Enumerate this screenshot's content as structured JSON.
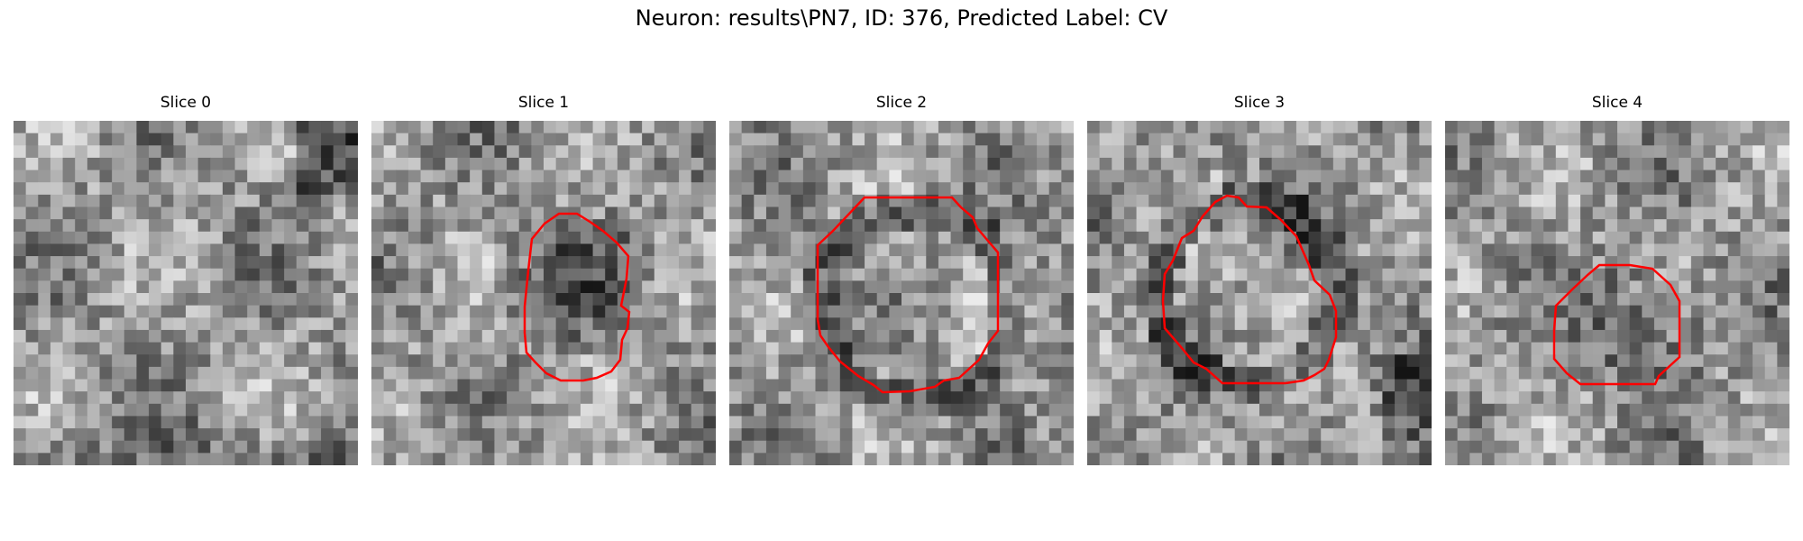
{
  "figure": {
    "title": "Neuron: results\\PN7, ID: 376, Predicted Label: CV"
  },
  "colors": {
    "contour": "#ff0000",
    "background": "#ffffff"
  },
  "slices": [
    {
      "title": "Slice 0",
      "has_contour": false,
      "seed": 11
    },
    {
      "title": "Slice 1",
      "has_contour": true,
      "seed": 23
    },
    {
      "title": "Slice 2",
      "has_contour": true,
      "seed": 37
    },
    {
      "title": "Slice 3",
      "has_contour": true,
      "seed": 41
    },
    {
      "title": "Slice 4",
      "has_contour": true,
      "seed": 59
    }
  ]
}
